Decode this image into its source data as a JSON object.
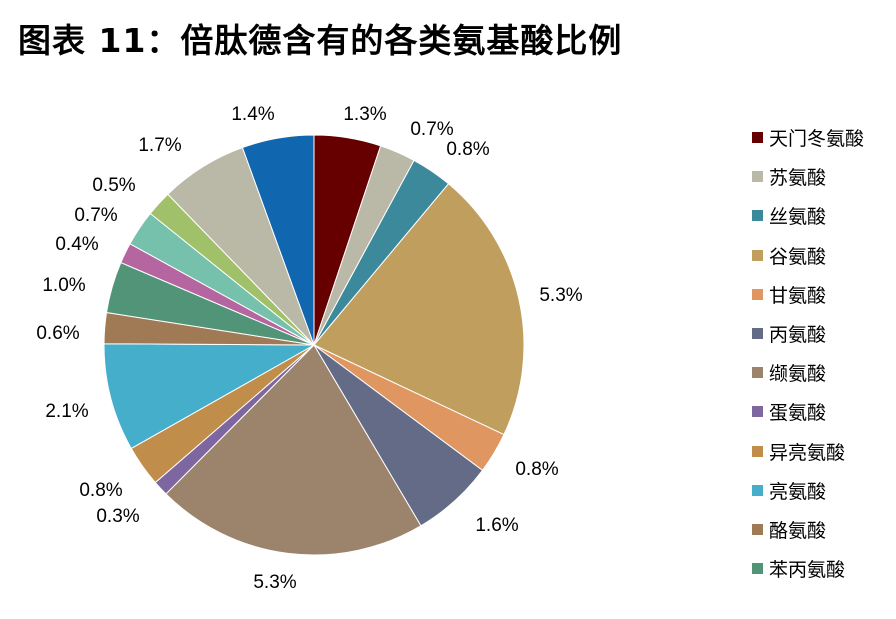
{
  "title": "图表 11：倍肽德含有的各类氨基酸比例",
  "chart_data": {
    "type": "pie",
    "title": "图表 11：倍肽德含有的各类氨基酸比例",
    "start": "top",
    "direction": "clockwise",
    "legend_position": "right",
    "slices": [
      {
        "name": "天门冬氨酸",
        "value": 1.3,
        "label": "1.3%",
        "color": "#660000"
      },
      {
        "name": "苏氨酸",
        "value": 0.7,
        "label": "0.7%",
        "color": "#BAB8A6"
      },
      {
        "name": "丝氨酸",
        "value": 0.8,
        "label": "0.8%",
        "color": "#3C899C"
      },
      {
        "name": "谷氨酸",
        "value": 5.3,
        "label": "5.3%",
        "color": "#BF9E5E"
      },
      {
        "name": "甘氨酸",
        "value": 0.8,
        "label": "0.8%",
        "color": "#E09660"
      },
      {
        "name": "丙氨酸",
        "value": 1.6,
        "label": "1.6%",
        "color": "#646B86"
      },
      {
        "name": "缬氨酸",
        "value": 5.3,
        "label": "5.3%",
        "color": "#9C846C"
      },
      {
        "name": "蛋氨酸",
        "value": 0.3,
        "label": "0.3%",
        "color": "#7E66A0"
      },
      {
        "name": "异亮氨酸",
        "value": 0.8,
        "label": "0.8%",
        "color": "#C08E4A"
      },
      {
        "name": "亮氨酸",
        "value": 2.1,
        "label": "2.1%",
        "color": "#45AECB"
      },
      {
        "name": "酪氨酸",
        "value": 0.6,
        "label": "0.6%",
        "color": "#A07A55"
      },
      {
        "name": "苯丙氨酸",
        "value": 1.0,
        "label": "1.0%",
        "color": "#529478"
      },
      {
        "value": 0.4,
        "label": "0.4%",
        "color": "#B565A0"
      },
      {
        "value": 0.7,
        "label": "0.7%",
        "color": "#76C1AC"
      },
      {
        "value": 0.5,
        "label": "0.5%",
        "color": "#A1C06A"
      },
      {
        "value": 1.7,
        "label": "1.7%",
        "color": "#BAB8A6"
      },
      {
        "value": 1.4,
        "label": "1.4%",
        "color": "#1166B0"
      }
    ]
  }
}
